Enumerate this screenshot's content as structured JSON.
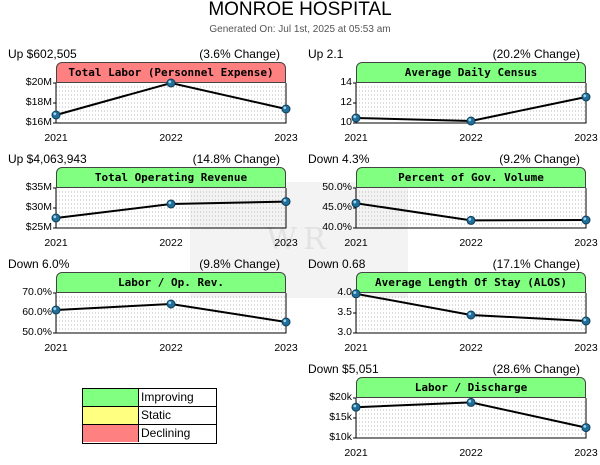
{
  "header": {
    "title": "MONROE HOSPITAL",
    "generated": "Generated On: Jul 1st, 2025 at 05:53 am"
  },
  "colors": {
    "improving": "#80ff80",
    "static": "#ffff80",
    "declining": "#ff8080"
  },
  "legend": {
    "items": [
      {
        "label": "Improving",
        "color": "#80ff80"
      },
      {
        "label": "Static",
        "color": "#ffff80"
      },
      {
        "label": "Declining",
        "color": "#ff8080"
      }
    ]
  },
  "chart_data": [
    {
      "type": "line",
      "title": "Total Labor (Personnel Expense)",
      "status": "declining",
      "change_left": "Up $602,505",
      "change_right": "(3.6% Change)",
      "categories": [
        "2021",
        "2022",
        "2023"
      ],
      "values": [
        16.8,
        20.0,
        17.4
      ],
      "ylim": [
        16,
        20
      ],
      "yticks": [
        16,
        18,
        20
      ],
      "ytick_labels": [
        "$16M",
        "$18M",
        "$20M"
      ]
    },
    {
      "type": "line",
      "title": "Average Daily Census",
      "status": "improving",
      "change_left": "Up 2.1",
      "change_right": "(20.2% Change)",
      "categories": [
        "2021",
        "2022",
        "2023"
      ],
      "values": [
        10.5,
        10.2,
        12.6
      ],
      "ylim": [
        10,
        14
      ],
      "yticks": [
        10,
        12,
        14
      ],
      "ytick_labels": [
        "10",
        "12",
        "14"
      ]
    },
    {
      "type": "line",
      "title": "Total Operating Revenue",
      "status": "improving",
      "change_left": "Up $4,063,943",
      "change_right": "(14.8% Change)",
      "categories": [
        "2021",
        "2022",
        "2023"
      ],
      "values": [
        27.5,
        31.0,
        31.6
      ],
      "ylim": [
        25,
        35
      ],
      "yticks": [
        25,
        30,
        35
      ],
      "ytick_labels": [
        "$25M",
        "$30M",
        "$35M"
      ]
    },
    {
      "type": "line",
      "title": "Percent of Gov. Volume",
      "status": "improving",
      "change_left": "Down 4.3%",
      "change_right": "(9.2% Change)",
      "categories": [
        "2021",
        "2022",
        "2023"
      ],
      "values": [
        46.2,
        41.9,
        42.0
      ],
      "ylim": [
        40,
        50
      ],
      "yticks": [
        40,
        45,
        50
      ],
      "ytick_labels": [
        "40.0%",
        "45.0%",
        "50.0%"
      ]
    },
    {
      "type": "line",
      "title": "Labor / Op. Rev.",
      "status": "improving",
      "change_left": "Down 6.0%",
      "change_right": "(9.8% Change)",
      "categories": [
        "2021",
        "2022",
        "2023"
      ],
      "values": [
        61.5,
        64.5,
        55.5
      ],
      "ylim": [
        50,
        70
      ],
      "yticks": [
        50,
        60,
        70
      ],
      "ytick_labels": [
        "50.0%",
        "60.0%",
        "70.0%"
      ]
    },
    {
      "type": "line",
      "title": "Average Length Of Stay (ALOS)",
      "status": "improving",
      "change_left": "Down 0.68",
      "change_right": "(17.1% Change)",
      "categories": [
        "2021",
        "2022",
        "2023"
      ],
      "values": [
        3.98,
        3.45,
        3.3
      ],
      "ylim": [
        3.0,
        4.0
      ],
      "yticks": [
        3.0,
        3.5,
        4.0
      ],
      "ytick_labels": [
        "3.0",
        "3.5",
        "4.0"
      ]
    },
    {
      "type": "line",
      "title": "Labor / Discharge",
      "status": "improving",
      "change_left": "Down $5,051",
      "change_right": "(28.6% Change)",
      "categories": [
        "2021",
        "2022",
        "2023"
      ],
      "values": [
        17.7,
        18.9,
        12.6
      ],
      "ylim": [
        10,
        20
      ],
      "yticks": [
        10,
        15,
        20
      ],
      "ytick_labels": [
        "$10k",
        "$15k",
        "$20k"
      ]
    }
  ]
}
